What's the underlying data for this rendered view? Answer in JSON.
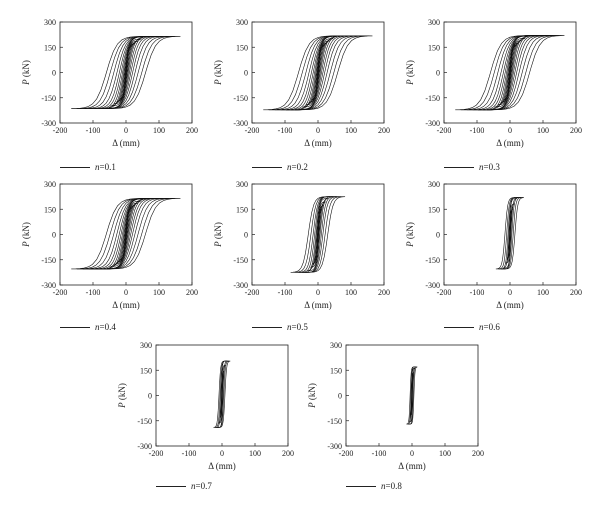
{
  "chart_data": [
    {
      "type": "line",
      "legend_label": "n=0.1",
      "legend_var": "n",
      "legend_value": "=0.1",
      "xlabel": "Δ (mm)",
      "ylabel_var": "P",
      "ylabel_unit": " (kN)",
      "xlim": [
        -200,
        200
      ],
      "ylim": [
        -300,
        300
      ],
      "xticks": [
        -200,
        -100,
        0,
        100,
        200
      ],
      "yticks": [
        300,
        150,
        0,
        -150,
        -300
      ],
      "grid": false,
      "max_disp": [
        12,
        19,
        27,
        36,
        46,
        57,
        69,
        82,
        96,
        112,
        130,
        148,
        165
      ],
      "peak_pos": 215,
      "peak_neg": -215
    },
    {
      "type": "line",
      "legend_label": "n=0.2",
      "legend_var": "n",
      "legend_value": "=0.2",
      "xlabel": "Δ (mm)",
      "ylabel_var": "P",
      "ylabel_unit": " (kN)",
      "xlim": [
        -200,
        200
      ],
      "ylim": [
        -300,
        300
      ],
      "xticks": [
        -200,
        -100,
        0,
        100,
        200
      ],
      "yticks": [
        300,
        150,
        0,
        -150,
        -300
      ],
      "grid": false,
      "max_disp": [
        12,
        19,
        27,
        36,
        46,
        57,
        69,
        82,
        96,
        112,
        130,
        148,
        165
      ],
      "peak_pos": 218,
      "peak_neg": -222
    },
    {
      "type": "line",
      "legend_label": "n=0.3",
      "legend_var": "n",
      "legend_value": "=0.3",
      "xlabel": "Δ (mm)",
      "ylabel_var": "P",
      "ylabel_unit": " (kN)",
      "xlim": [
        -200,
        200
      ],
      "ylim": [
        -300,
        300
      ],
      "xticks": [
        -200,
        -100,
        0,
        100,
        200
      ],
      "yticks": [
        300,
        150,
        0,
        -150,
        -300
      ],
      "grid": false,
      "max_disp": [
        12,
        19,
        27,
        36,
        46,
        57,
        69,
        82,
        96,
        112,
        130,
        148,
        165
      ],
      "peak_pos": 220,
      "peak_neg": -222
    },
    {
      "type": "line",
      "legend_label": "n=0.4",
      "legend_var": "n",
      "legend_value": "=0.4",
      "xlabel": "Δ (mm)",
      "ylabel_var": "P",
      "ylabel_unit": " (kN)",
      "xlim": [
        -200,
        200
      ],
      "ylim": [
        -300,
        300
      ],
      "xticks": [
        -200,
        -100,
        0,
        100,
        200
      ],
      "yticks": [
        300,
        150,
        0,
        -150,
        -300
      ],
      "grid": false,
      "max_disp": [
        12,
        19,
        27,
        36,
        46,
        57,
        69,
        82,
        96,
        112,
        130,
        148,
        165
      ],
      "peak_pos": 215,
      "peak_neg": -205
    },
    {
      "type": "line",
      "legend_label": "n=0.5",
      "legend_var": "n",
      "legend_value": "=0.5",
      "xlabel": "Δ (mm)",
      "ylabel_var": "P",
      "ylabel_unit": " (kN)",
      "xlim": [
        -200,
        200
      ],
      "ylim": [
        -300,
        300
      ],
      "xticks": [
        -200,
        -100,
        0,
        100,
        200
      ],
      "yticks": [
        300,
        150,
        0,
        -150,
        -300
      ],
      "grid": false,
      "max_disp": [
        10,
        16,
        22,
        30,
        38,
        48,
        58,
        70,
        82
      ],
      "peak_pos": 225,
      "peak_neg": -225
    },
    {
      "type": "line",
      "legend_label": "n=0.6",
      "legend_var": "n",
      "legend_value": "=0.6",
      "xlabel": "Δ (mm)",
      "ylabel_var": "P",
      "ylabel_unit": " (kN)",
      "xlim": [
        -200,
        200
      ],
      "ylim": [
        -300,
        300
      ],
      "xticks": [
        -200,
        -100,
        0,
        100,
        200
      ],
      "yticks": [
        300,
        150,
        0,
        -150,
        -300
      ],
      "grid": false,
      "max_disp": [
        8,
        13,
        19,
        26,
        34,
        42
      ],
      "peak_pos": 220,
      "peak_neg": -205
    },
    {
      "type": "line",
      "legend_label": "n=0.7",
      "legend_var": "n",
      "legend_value": "=0.7",
      "xlabel": "Δ (mm)",
      "ylabel_var": "P",
      "ylabel_unit": " (kN)",
      "xlim": [
        -200,
        200
      ],
      "ylim": [
        -300,
        300
      ],
      "xticks": [
        -200,
        -100,
        0,
        100,
        200
      ],
      "yticks": [
        300,
        150,
        0,
        -150,
        -300
      ],
      "grid": false,
      "max_disp": [
        6,
        10,
        15,
        20,
        25
      ],
      "peak_pos": 205,
      "peak_neg": -190
    },
    {
      "type": "line",
      "legend_label": "n=0.8",
      "legend_var": "n",
      "legend_value": "=0.8",
      "xlabel": "Δ (mm)",
      "ylabel_var": "P",
      "ylabel_unit": " (kN)",
      "xlim": [
        -200,
        200
      ],
      "ylim": [
        -300,
        300
      ],
      "xticks": [
        -200,
        -100,
        0,
        100,
        200
      ],
      "yticks": [
        300,
        150,
        0,
        -150,
        -300
      ],
      "grid": false,
      "max_disp": [
        5,
        8,
        12,
        16
      ],
      "peak_pos": 170,
      "peak_neg": -170
    }
  ]
}
